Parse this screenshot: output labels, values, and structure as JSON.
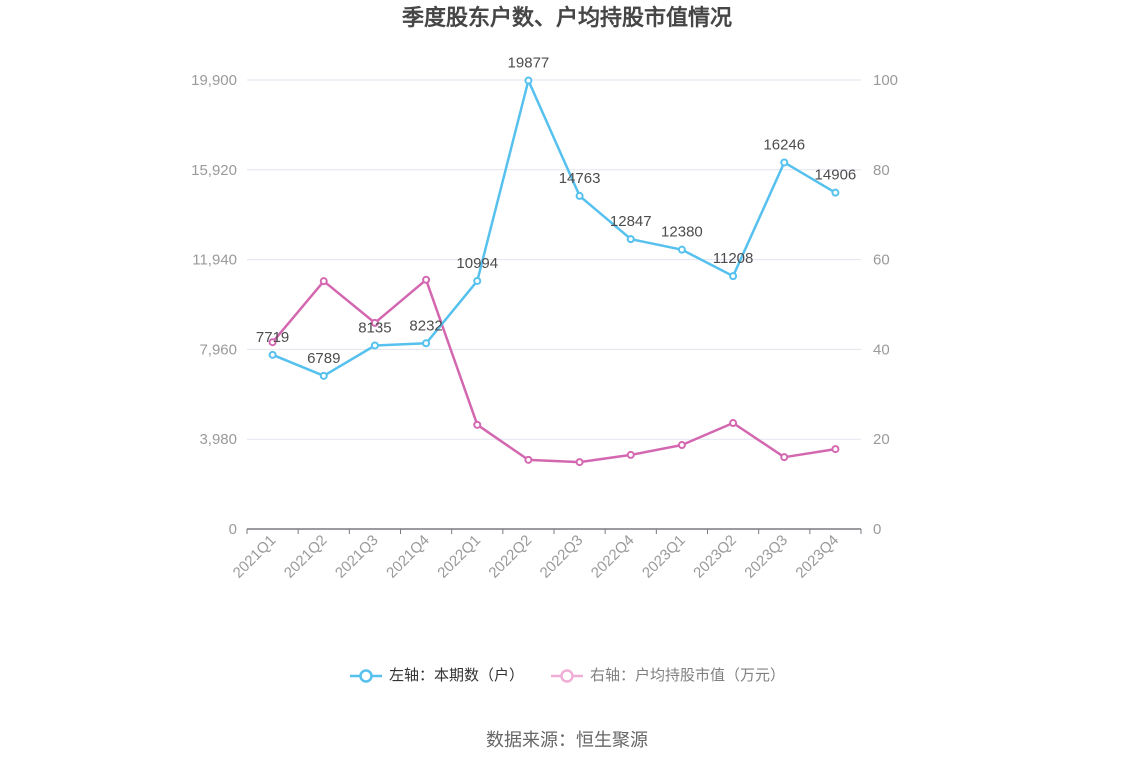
{
  "chart_data": {
    "type": "line",
    "title": "季度股东户数、户均持股市值情况",
    "categories": [
      "2021Q1",
      "2021Q2",
      "2021Q3",
      "2021Q4",
      "2022Q1",
      "2022Q2",
      "2022Q3",
      "2022Q4",
      "2023Q1",
      "2023Q2",
      "2023Q3",
      "2023Q4"
    ],
    "series": [
      {
        "name": "左轴：本期数（户）",
        "y_axis": 0,
        "color": "#56c1ee",
        "legend_color": "#56c1ee",
        "legend_text_color": "#333333",
        "show_labels": true,
        "values": [
          7719,
          6789,
          8135,
          8232,
          10994,
          19877,
          14763,
          12847,
          12380,
          11208,
          16246,
          14906
        ]
      },
      {
        "name": "右轴：户均持股市值（万元）",
        "y_axis": 1,
        "color": "#d468b0",
        "legend_color": "#efaed6",
        "legend_text_color": "#808080",
        "show_labels": false,
        "values": [
          41.6,
          55.2,
          45.9,
          55.5,
          23.2,
          15.4,
          14.9,
          16.5,
          18.7,
          23.6,
          16.0,
          17.8
        ]
      }
    ],
    "left_axis": {
      "ylim": [
        0,
        19900
      ],
      "tick_labels": [
        "0",
        "3,980",
        "7,960",
        "11,940",
        "15,920",
        "19,900"
      ]
    },
    "right_axis": {
      "ylim": [
        0,
        100
      ],
      "tick_labels": [
        "0",
        "20",
        "40",
        "60",
        "80",
        "100"
      ]
    },
    "grid": true,
    "legend_position": "bottom"
  },
  "source": "数据来源：恒生聚源"
}
